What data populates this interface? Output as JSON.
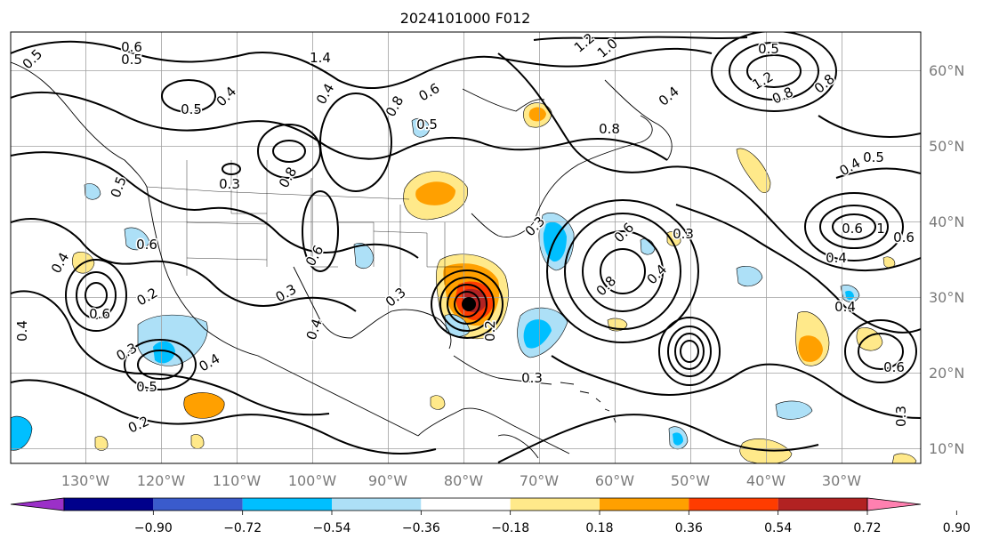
{
  "title": "2024101000 F012",
  "map": {
    "lon_labels": [
      "130°W",
      "120°W",
      "110°W",
      "100°W",
      "90°W",
      "80°W",
      "70°W",
      "60°W",
      "50°W",
      "40°W",
      "30°W"
    ],
    "lat_labels": [
      "10°N",
      "20°N",
      "30°N",
      "40°N",
      "50°N",
      "60°N"
    ]
  },
  "colorbar": {
    "tick_labels": [
      "−0.90",
      "−0.72",
      "−0.54",
      "−0.36",
      "−0.18",
      "0.18",
      "0.36",
      "0.54",
      "0.72",
      "0.90"
    ],
    "colors": [
      "#9b30c8",
      "#00008b",
      "#3a5bcc",
      "#00bfff",
      "#ade0f7",
      "#ffffff",
      "#ffe98a",
      "#ffa000",
      "#ff3c00",
      "#b22222",
      "#ff80b0"
    ],
    "extend": "both"
  },
  "contour_labels": [
    "0.5",
    "0.6",
    "0.5",
    "1.4",
    "1.2",
    "1.0",
    "0.4",
    "0.5",
    "0.6",
    "0.8",
    "0.4",
    "0.5",
    "0.8",
    "0.3",
    "0.5",
    "0.4",
    "0.3",
    "0.8",
    "0.5",
    "0.4",
    "0.6",
    "0.6",
    "0.3",
    "0.6",
    "0.6",
    "0.3",
    "0.8",
    "0.4",
    "0.3",
    "0.4",
    "0.8",
    "1",
    "0.6",
    "0.5",
    "0.2",
    "0.6",
    "0.4",
    "0.3",
    "0.4",
    "0.5",
    "0.2",
    "0.4",
    "0.3",
    "0.2",
    "0.4",
    "1.2",
    "0.8",
    "0.4",
    "0.3",
    "0.6"
  ]
}
